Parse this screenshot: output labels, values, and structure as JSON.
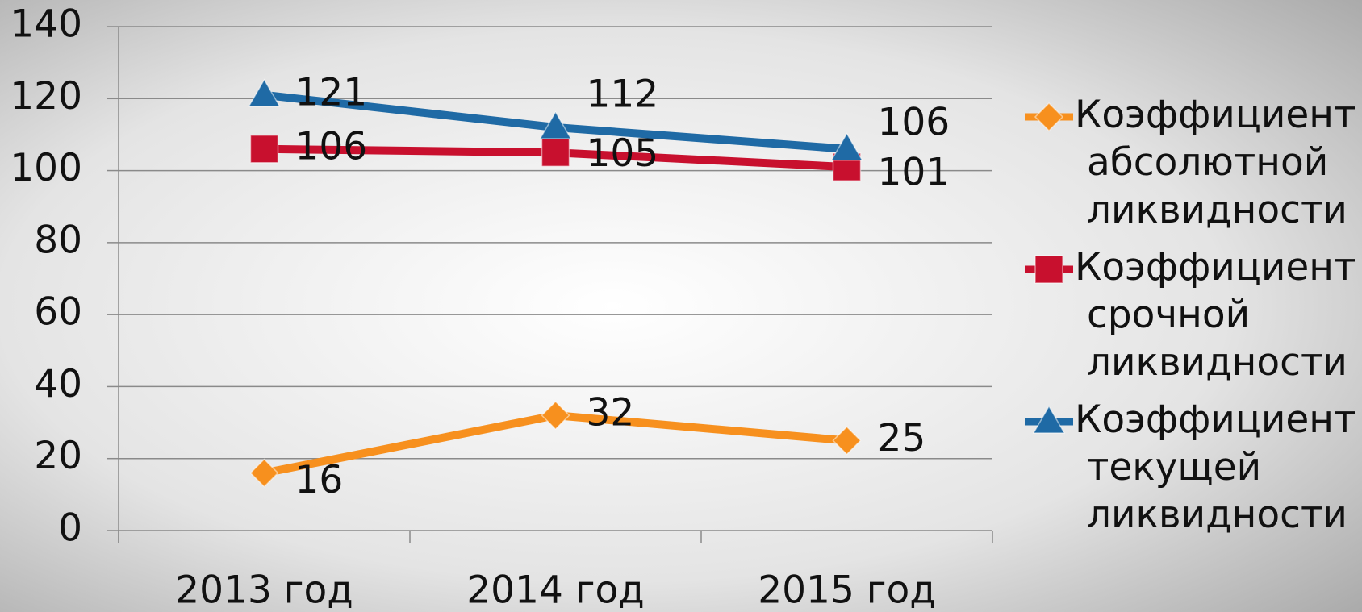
{
  "chart_data": {
    "type": "line",
    "categories": [
      "2013 год",
      "2014 год",
      "2015 год"
    ],
    "series": [
      {
        "name": "Коэффициент абсолютной ликвидности",
        "color": "#f7901e",
        "marker": "diamond",
        "values": [
          16,
          32,
          25
        ]
      },
      {
        "name": "Коэффициент срочной ликвидности",
        "color": "#c8102e",
        "marker": "square",
        "values": [
          106,
          105,
          101
        ]
      },
      {
        "name": "Коэффициент текущей ликвидности",
        "color": "#1f6aa5",
        "marker": "triangle",
        "values": [
          121,
          112,
          106
        ]
      }
    ],
    "ylim": [
      0,
      140
    ],
    "yticks": [
      0,
      20,
      40,
      60,
      80,
      100,
      120,
      140
    ],
    "grid": true,
    "legend": "right"
  }
}
